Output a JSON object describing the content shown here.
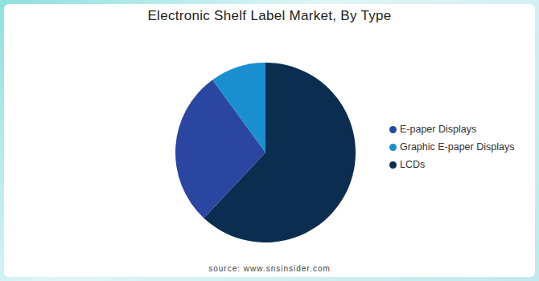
{
  "chart_data": {
    "type": "pie",
    "title": "Electronic Shelf Label Market, By Type",
    "categories": [
      "LCDs",
      "E-paper Displays",
      "Graphic E-paper Displays"
    ],
    "values": [
      62,
      28,
      10
    ],
    "colors": [
      "#0b2e50",
      "#2a46a0",
      "#1a8fd0"
    ],
    "legend": "right",
    "source": "source: www.snsinsider.com"
  }
}
